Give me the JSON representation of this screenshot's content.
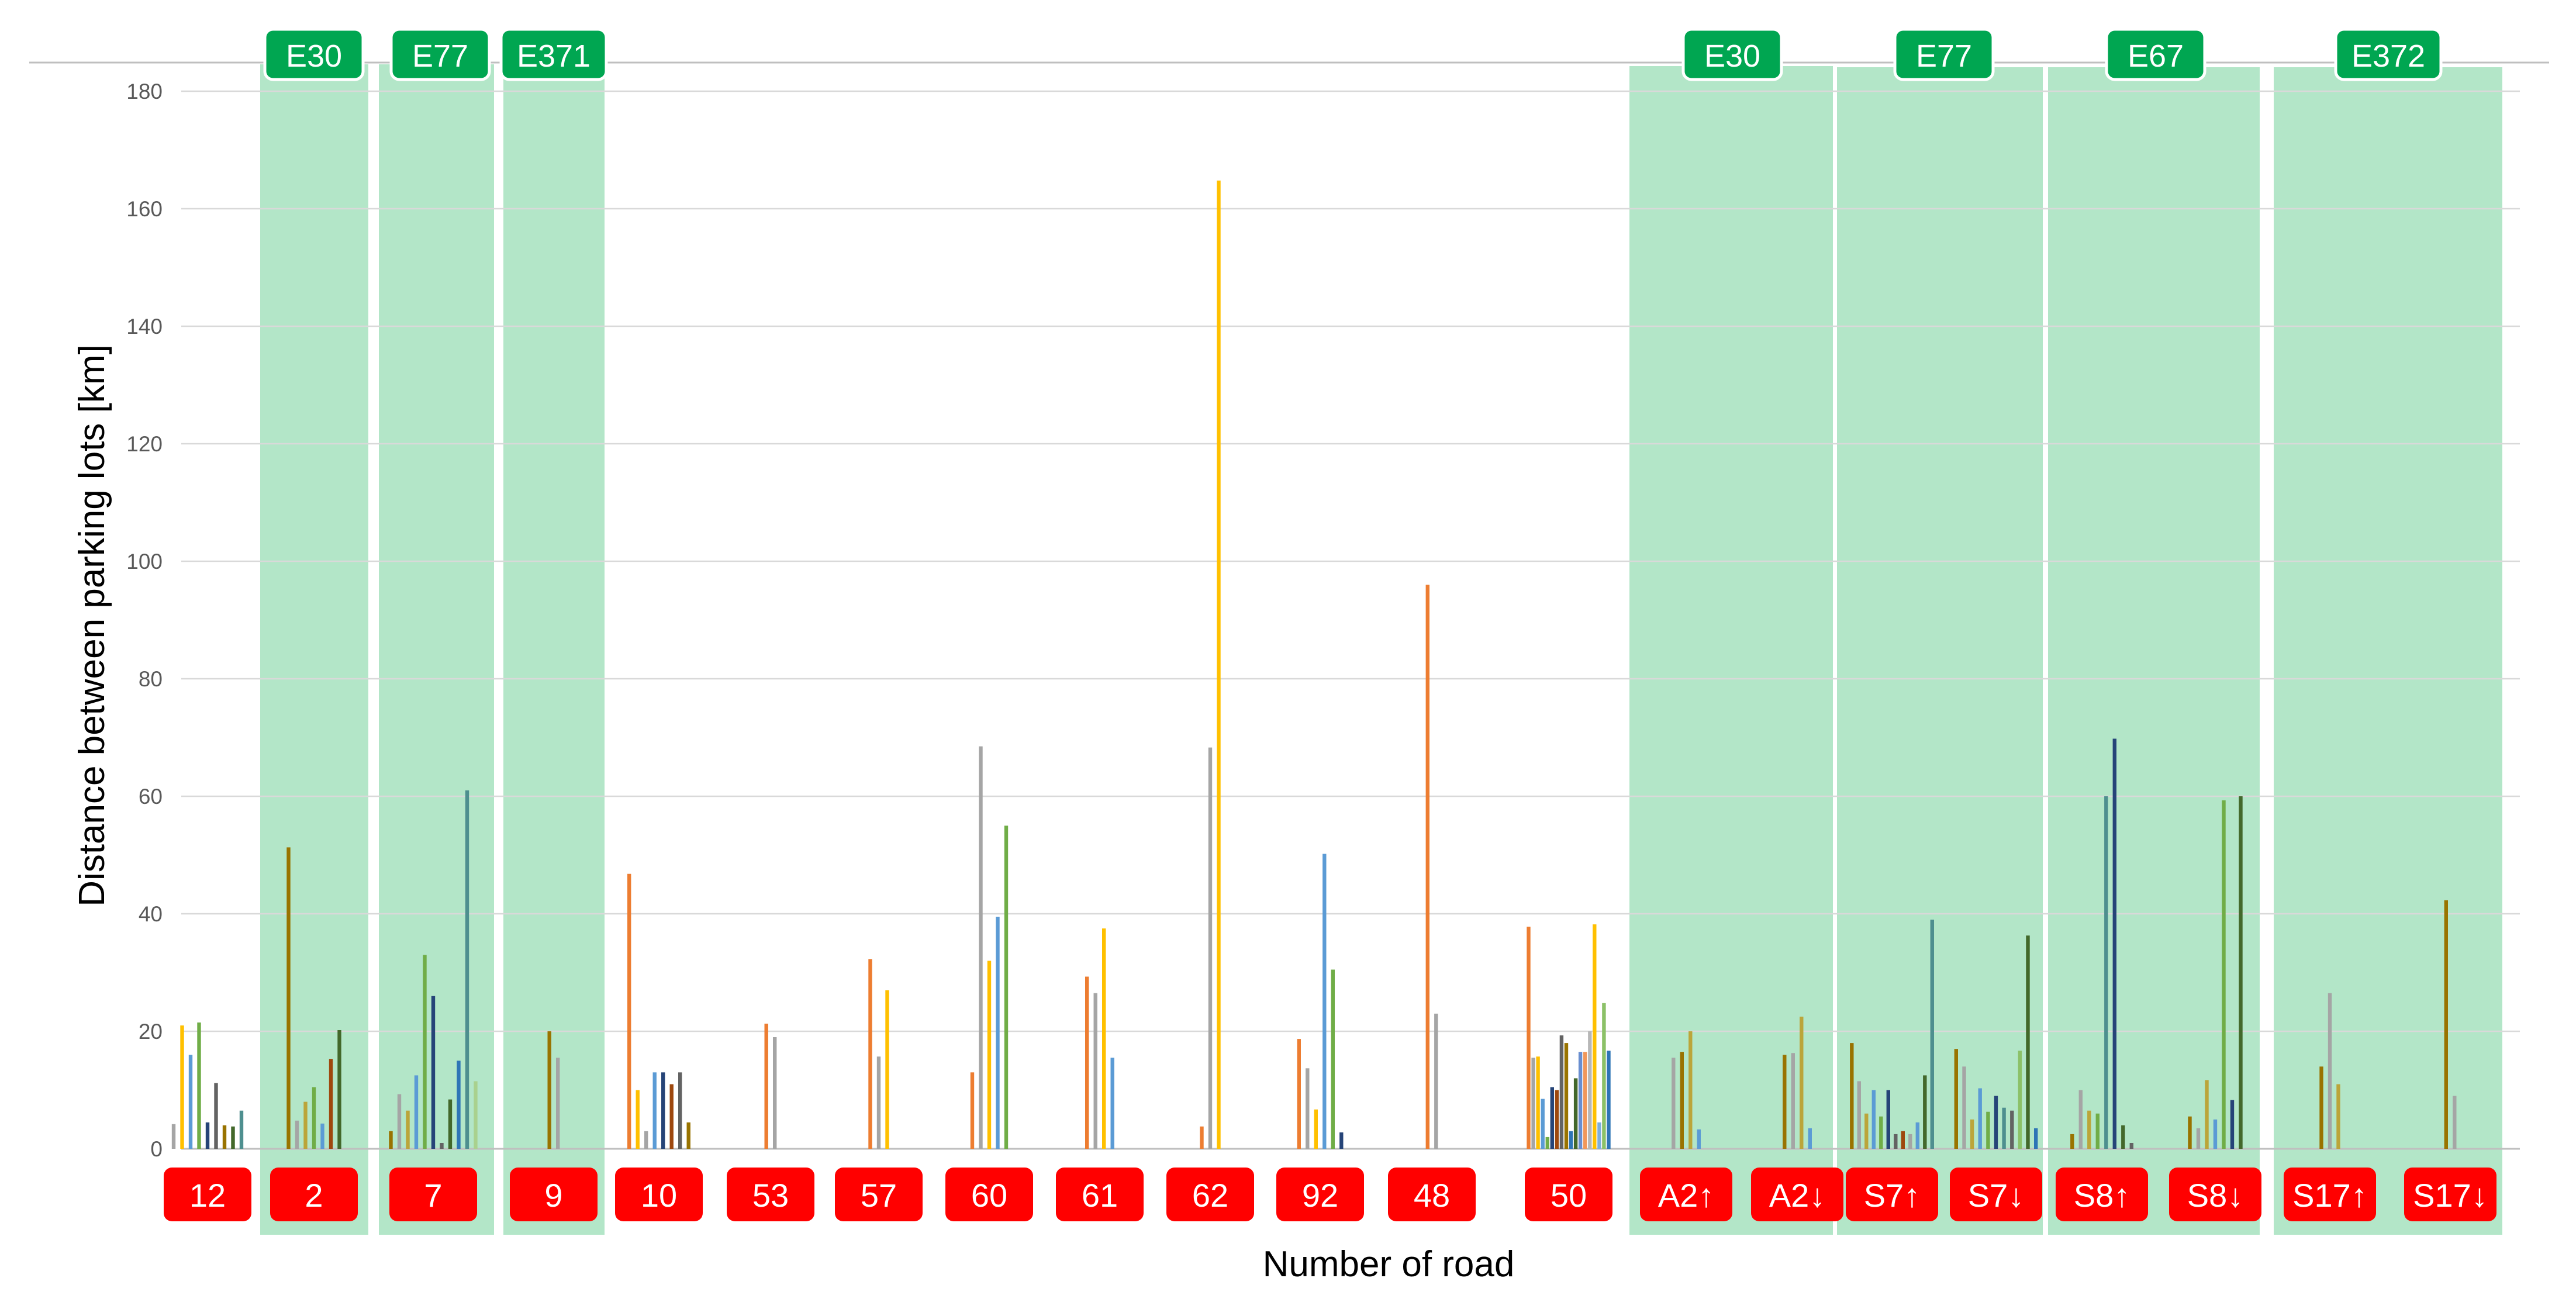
{
  "chart_data": {
    "type": "bar",
    "title": "",
    "xlabel": "Number of road",
    "ylabel": "Distance between parking lots [km]",
    "ylim": [
      0,
      185
    ],
    "yticks": [
      0,
      20,
      40,
      60,
      80,
      100,
      120,
      140,
      160,
      180
    ],
    "grid": true,
    "legend": "none",
    "series_colors": [
      "#A5A5A5",
      "#4472C4",
      "#FFC000",
      "#5B9BD5",
      "#70AD47",
      "#264478",
      "#9E480E",
      "#636363",
      "#997300",
      "#ED7D31",
      "#43682B",
      "#698ED0",
      "#F1975A",
      "#B7B7B7",
      "#BBA53A",
      "#7CAFDD",
      "#8CC168",
      "#4E8F8F",
      "#2E75B6",
      "#A9D18E"
    ],
    "roads": [
      {
        "label": "12",
        "values": [
          4.2,
          21,
          16,
          21.5,
          4.5,
          11.2,
          4,
          3.8,
          6.5
        ],
        "colors": [
          "#A5A5A5",
          "#FFC000",
          "#5B9BD5",
          "#70AD47",
          "#264478",
          "#636363",
          "#997300",
          "#43682B",
          "#4E8F8F"
        ]
      },
      {
        "label": "2",
        "values": [
          51.3,
          4.8,
          8,
          10.5,
          4.3,
          15.3,
          20.2
        ],
        "colors": [
          "#997300",
          "#A5A5A5",
          "#BBA53A",
          "#70AD47",
          "#5B9BD5",
          "#9E480E",
          "#43682B"
        ]
      },
      {
        "label": "7",
        "values": [
          3,
          9.3,
          6.5,
          12.5,
          33,
          26,
          1,
          8.4,
          15,
          61,
          11.5
        ],
        "colors": [
          "#997300",
          "#A5A5A5",
          "#BBA53A",
          "#5B9BD5",
          "#70AD47",
          "#264478",
          "#636363",
          "#43682B",
          "#2E75B6",
          "#4E8F8F",
          "#A9D18E"
        ]
      },
      {
        "label": "9",
        "values": [
          20,
          15.5
        ],
        "colors": [
          "#997300",
          "#A5A5A5"
        ]
      },
      {
        "label": "10",
        "values": [
          46.8,
          10,
          3,
          13,
          13,
          11,
          13,
          4.5
        ],
        "colors": [
          "#ED7D31",
          "#FFC000",
          "#A5A5A5",
          "#5B9BD5",
          "#264478",
          "#9E480E",
          "#636363",
          "#997300"
        ]
      },
      {
        "label": "53",
        "values": [
          21.3,
          19
        ],
        "colors": [
          "#ED7D31",
          "#A5A5A5"
        ]
      },
      {
        "label": "57",
        "values": [
          32.3,
          15.7,
          27
        ],
        "colors": [
          "#ED7D31",
          "#A5A5A5",
          "#FFC000"
        ]
      },
      {
        "label": "60",
        "values": [
          13,
          68.5,
          32,
          39.5,
          55
        ],
        "colors": [
          "#ED7D31",
          "#A5A5A5",
          "#FFC000",
          "#5B9BD5",
          "#70AD47"
        ]
      },
      {
        "label": "61",
        "values": [
          29.3,
          26.5,
          37.5,
          15.5
        ],
        "colors": [
          "#ED7D31",
          "#A5A5A5",
          "#FFC000",
          "#5B9BD5"
        ]
      },
      {
        "label": "62",
        "values": [
          3.8,
          68.3,
          164.8
        ],
        "colors": [
          "#ED7D31",
          "#A5A5A5",
          "#FFC000"
        ]
      },
      {
        "label": "92",
        "values": [
          18.7,
          13.7,
          6.7,
          50.2,
          30.5,
          2.8
        ],
        "colors": [
          "#ED7D31",
          "#A5A5A5",
          "#FFC000",
          "#5B9BD5",
          "#70AD47",
          "#264478"
        ]
      },
      {
        "label": "48",
        "values": [
          96,
          23
        ],
        "colors": [
          "#ED7D31",
          "#A5A5A5"
        ]
      },
      {
        "label": "50",
        "values": [
          37.8,
          15.5,
          15.7,
          8.5,
          2,
          10.5,
          10,
          19.3,
          18,
          3,
          12,
          16.5,
          16.5,
          20,
          38.2,
          4.5,
          24.8,
          16.7
        ],
        "colors": [
          "#ED7D31",
          "#A5A5A5",
          "#FFC000",
          "#5B9BD5",
          "#70AD47",
          "#264478",
          "#9E480E",
          "#636363",
          "#997300",
          "#2E75B6",
          "#43682B",
          "#698ED0",
          "#F1975A",
          "#B7B7B7",
          "#FFC000",
          "#7CAFDD",
          "#8CC168",
          "#2E75B6"
        ]
      },
      {
        "label": "A2↑",
        "values": [
          15.5,
          16.5,
          20,
          3.3
        ],
        "colors": [
          "#A5A5A5",
          "#997300",
          "#BBA53A",
          "#5B9BD5"
        ]
      },
      {
        "label": "A2↓",
        "values": [
          16,
          16.3,
          22.5,
          3.5
        ],
        "colors": [
          "#997300",
          "#A5A5A5",
          "#BBA53A",
          "#5B9BD5"
        ]
      },
      {
        "label": "S7↑",
        "values": [
          18,
          11.5,
          6,
          10,
          5.5,
          10,
          2.5,
          3,
          2.5,
          4.5,
          12.5,
          39
        ],
        "colors": [
          "#997300",
          "#A5A5A5",
          "#BBA53A",
          "#5B9BD5",
          "#70AD47",
          "#264478",
          "#636363",
          "#9E480E",
          "#A5A5A5",
          "#5B9BD5",
          "#43682B",
          "#4E8F8F"
        ]
      },
      {
        "label": "S7↓",
        "values": [
          17,
          14,
          5,
          10.3,
          6.3,
          9,
          7,
          6.5,
          16.7,
          36.3,
          3.5
        ],
        "colors": [
          "#997300",
          "#A5A5A5",
          "#BBA53A",
          "#5B9BD5",
          "#70AD47",
          "#264478",
          "#4E8F8F",
          "#636363",
          "#8CC168",
          "#43682B",
          "#2E75B6"
        ]
      },
      {
        "label": "S8↑",
        "values": [
          2.5,
          10,
          6.5,
          6,
          60,
          69.8,
          4,
          1
        ],
        "colors": [
          "#997300",
          "#A5A5A5",
          "#BBA53A",
          "#70AD47",
          "#4E8F8F",
          "#264478",
          "#43682B",
          "#636363"
        ]
      },
      {
        "label": "S8↓",
        "values": [
          5.5,
          3.5,
          11.7,
          5,
          59.3,
          8.3,
          60
        ],
        "colors": [
          "#997300",
          "#A5A5A5",
          "#BBA53A",
          "#5B9BD5",
          "#70AD47",
          "#264478",
          "#43682B"
        ]
      },
      {
        "label": "S17↑",
        "values": [
          14,
          26.5,
          11
        ],
        "colors": [
          "#997300",
          "#A5A5A5",
          "#BBA53A"
        ]
      },
      {
        "label": "S17↓",
        "values": [
          42.3,
          9
        ],
        "colors": [
          "#997300",
          "#A5A5A5"
        ]
      }
    ],
    "european_routes": [
      {
        "label": "E30",
        "roads": [
          "2"
        ]
      },
      {
        "label": "E77",
        "roads": [
          "7"
        ]
      },
      {
        "label": "E371",
        "roads": [
          "9"
        ]
      },
      {
        "label": "E30",
        "roads": [
          "A2↑",
          "A2↓"
        ]
      },
      {
        "label": "E77",
        "roads": [
          "S7↑",
          "S7↓"
        ]
      },
      {
        "label": "E67",
        "roads": [
          "S8↑",
          "S8↓"
        ]
      },
      {
        "label": "E372",
        "roads": [
          "S17↑",
          "S17↓"
        ]
      }
    ],
    "road_badge_color": "#FF0000",
    "route_badge_color": "#00A651",
    "route_band_color": "#B3E6C8",
    "gridline_color": "#D9D9D9"
  }
}
